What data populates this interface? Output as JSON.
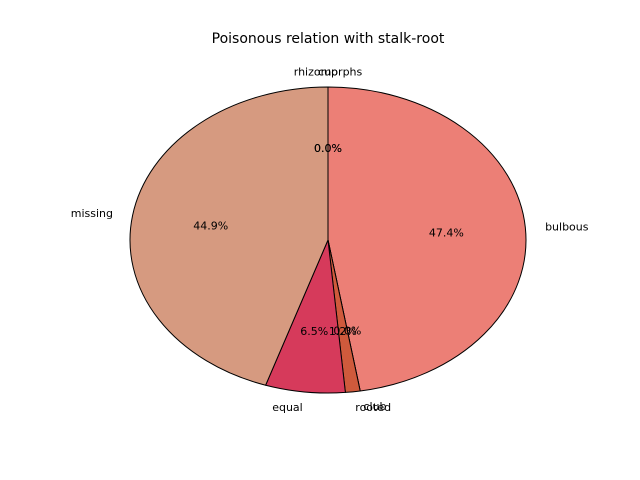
{
  "chart_data": {
    "type": "pie",
    "title": "Poisonous relation with stalk-root",
    "slices": [
      {
        "label": "bulbous",
        "value": 47.4,
        "pct_label": "47.4%",
        "color": "#ec7f76"
      },
      {
        "label": "club",
        "value": 0.0,
        "pct_label": "0.0%",
        "color": "#ec7f76"
      },
      {
        "label": "rooted",
        "value": 1.2,
        "pct_label": "1.2%",
        "color": "#cf5a3c"
      },
      {
        "label": "equal",
        "value": 6.5,
        "pct_label": "6.5%",
        "color": "#d63a5b"
      },
      {
        "label": "missing",
        "value": 44.9,
        "pct_label": "44.9%",
        "color": "#d69a80"
      },
      {
        "label": "cup",
        "value": 0.0,
        "pct_label": "0.0%",
        "color": "#d69a80"
      },
      {
        "label": "rhizomorphs",
        "value": 0.0,
        "pct_label": "0.0%",
        "color": "#d69a80"
      }
    ],
    "start_angle": 90,
    "direction": "clockwise",
    "edge_color": "#000000"
  }
}
